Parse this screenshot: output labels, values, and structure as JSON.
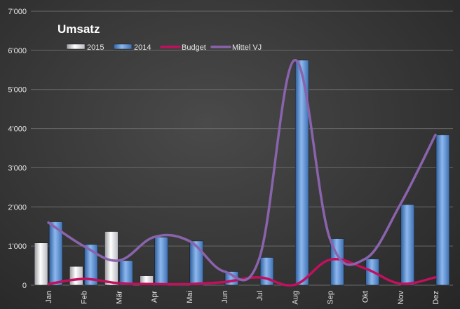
{
  "chart_data": {
    "type": "bar",
    "title": "Umsatz",
    "categories": [
      "Jan",
      "Feb",
      "Mär",
      "Apr",
      "Mai",
      "Jun",
      "Jul",
      "Aug",
      "Sep",
      "Okt",
      "Nov",
      "Dez"
    ],
    "ylim": [
      0,
      7000
    ],
    "yticks": [
      "0",
      "1'000",
      "2'000",
      "3'000",
      "4'000",
      "5'000",
      "6'000",
      "7'000"
    ],
    "ytick_values": [
      0,
      1000,
      2000,
      3000,
      4000,
      5000,
      6000,
      7000
    ],
    "grid": true,
    "legend_position": "top",
    "series": [
      {
        "name": "2015",
        "kind": "bar",
        "color": "#e8e8ec",
        "values": [
          1080,
          480,
          1370,
          240,
          0,
          0,
          0,
          0,
          0,
          0,
          0,
          0
        ]
      },
      {
        "name": "2014",
        "kind": "bar",
        "color": "#6f9fde",
        "values": [
          1620,
          1040,
          630,
          1230,
          1130,
          350,
          710,
          5750,
          1190,
          670,
          2060,
          3840
        ]
      },
      {
        "name": "Budget",
        "kind": "line",
        "color": "#c0105e",
        "values": [
          30,
          160,
          50,
          30,
          30,
          80,
          200,
          10,
          650,
          430,
          40,
          200
        ]
      },
      {
        "name": "Mittel VJ",
        "kind": "line",
        "color": "#8a63ad",
        "values": [
          1600,
          1000,
          630,
          1230,
          1130,
          350,
          700,
          5750,
          1190,
          670,
          2060,
          3840
        ]
      }
    ]
  }
}
